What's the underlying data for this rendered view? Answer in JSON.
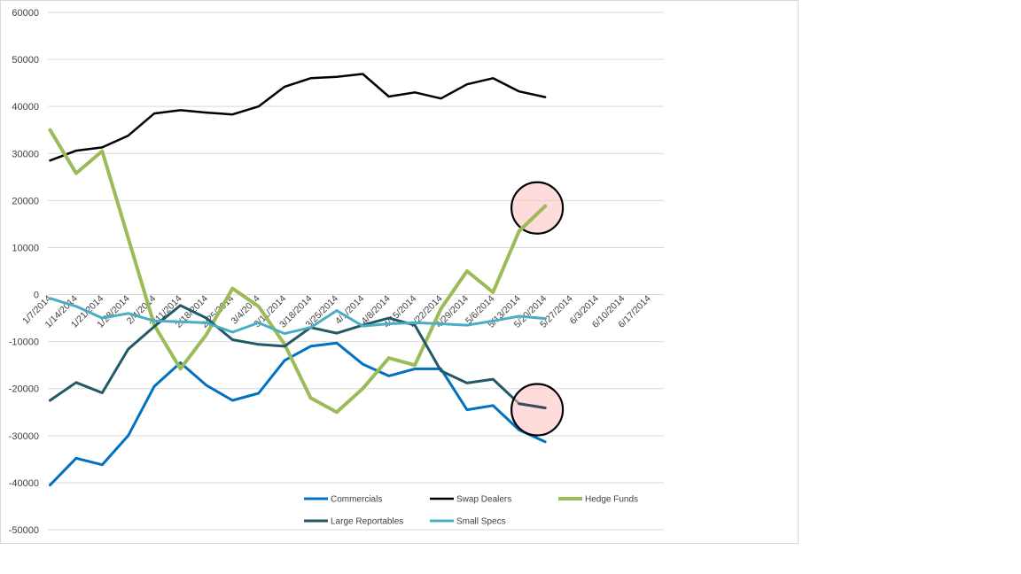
{
  "chart_data": {
    "type": "line",
    "title": "",
    "xlabel": "",
    "ylabel": "",
    "ylim": [
      -50000,
      60000
    ],
    "yticks": [
      60000,
      50000,
      40000,
      30000,
      20000,
      10000,
      0,
      -10000,
      -20000,
      -30000,
      -40000,
      -50000
    ],
    "grid": true,
    "legend_position": "bottom-right",
    "categories": [
      "1/7/2014",
      "1/14/2014",
      "1/21/2014",
      "1/28/2014",
      "2/4/2014",
      "2/11/2014",
      "2/18/2014",
      "2/25/2014",
      "3/4/2014",
      "3/11/2014",
      "3/18/2014",
      "3/25/2014",
      "4/1/2014",
      "4/8/2014",
      "4/15/2014",
      "4/22/2014",
      "4/29/2014",
      "5/6/2014",
      "5/13/2014",
      "5/20/2014",
      "5/27/2014",
      "6/3/2014",
      "6/10/2014",
      "6/17/2014"
    ],
    "series": [
      {
        "name": "Commercials",
        "color": "#0070c0",
        "width": 3,
        "values": [
          -40500,
          -34800,
          -36200,
          -30000,
          -19500,
          -14500,
          -19300,
          -22500,
          -21000,
          -14000,
          -11000,
          -10300,
          -14800,
          -17300,
          -15800,
          -15800,
          -24500,
          -23600,
          -28800,
          -31300,
          null,
          null,
          null,
          null
        ]
      },
      {
        "name": "Swap Dealers",
        "color": "#000000",
        "width": 2.5,
        "values": [
          28500,
          30600,
          31300,
          33800,
          38500,
          39200,
          38700,
          38300,
          40000,
          44200,
          46000,
          46300,
          46900,
          42100,
          43000,
          41700,
          44700,
          46000,
          43200,
          42000,
          null,
          null,
          null,
          null
        ]
      },
      {
        "name": "Hedge Funds",
        "color": "#9bbb59",
        "width": 4,
        "values": [
          35000,
          25800,
          30500,
          12000,
          -6500,
          -15800,
          -8500,
          1300,
          -2500,
          -10600,
          -22000,
          -25000,
          -20000,
          -13500,
          -15000,
          -3000,
          5000,
          500,
          13500,
          18800,
          null,
          null,
          null,
          null
        ]
      },
      {
        "name": "Large Reportables",
        "color": "#215967",
        "width": 3,
        "values": [
          -22500,
          -18700,
          -20900,
          -11600,
          -6800,
          -2300,
          -5000,
          -9600,
          -10600,
          -11000,
          -7000,
          -8200,
          -6500,
          -5000,
          -6500,
          -16200,
          -18800,
          -18000,
          -23200,
          -24100,
          null,
          null,
          null,
          null
        ]
      },
      {
        "name": "Small Specs",
        "color": "#4bacc6",
        "width": 3,
        "values": [
          -800,
          -2500,
          -5000,
          -4000,
          -5600,
          -5800,
          -6000,
          -8000,
          -6000,
          -8300,
          -7000,
          -3400,
          -6700,
          -6200,
          -6000,
          -6200,
          -6500,
          -5600,
          -4600,
          -5100,
          null,
          null,
          null,
          null
        ]
      }
    ],
    "highlights": [
      {
        "series": "Hedge Funds",
        "category": "5/20/2014",
        "value": 18800,
        "color": "#ffbfbf"
      },
      {
        "series": "Large Reportables",
        "category": "5/20/2014",
        "value": -24100,
        "color": "#ffbfbf"
      }
    ]
  }
}
